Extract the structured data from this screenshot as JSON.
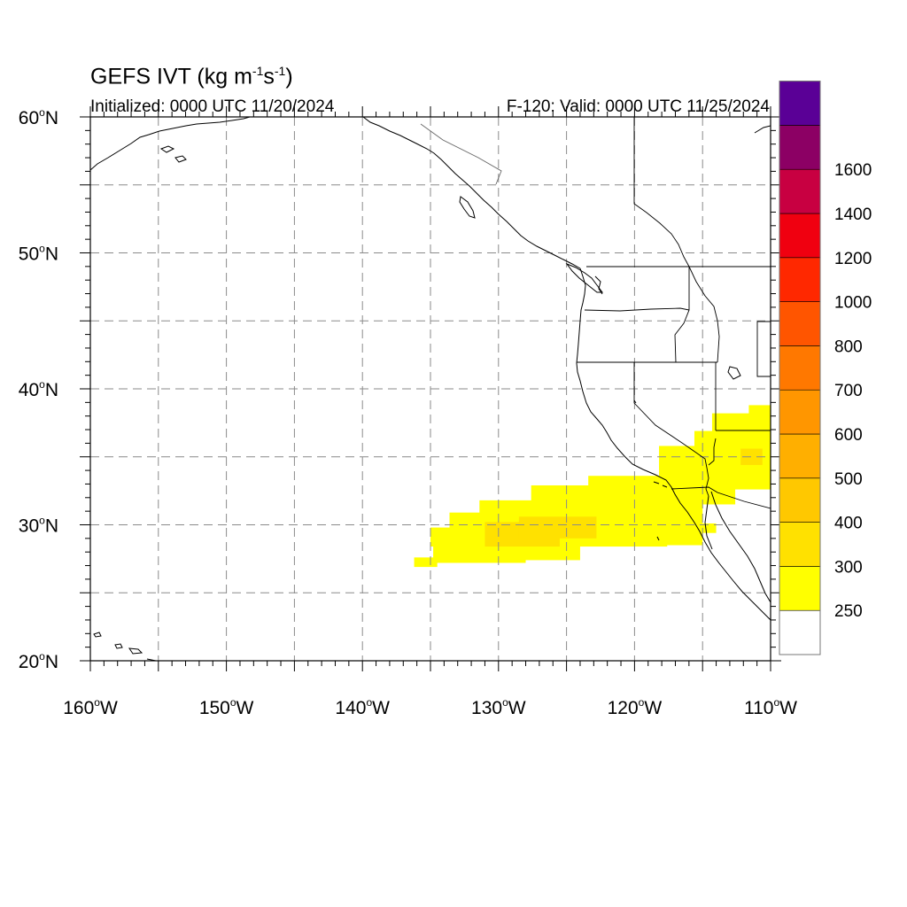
{
  "title": {
    "prefix": "GEFS IVT (kg m",
    "exp1": "-1",
    "mid": "s",
    "exp2": "-1",
    "suffix": ")"
  },
  "subtitle_left": "Initialized: 0000 UTC 11/20/2024",
  "subtitle_right": "F-120: Valid: 0000 UTC 11/25/2024",
  "map": {
    "lon_range": [
      -160,
      -110
    ],
    "lat_range": [
      20,
      60
    ],
    "lon_ticks": [
      {
        "value": -160,
        "label": "160",
        "suffix": "W"
      },
      {
        "value": -150,
        "label": "150",
        "suffix": "W"
      },
      {
        "value": -140,
        "label": "140",
        "suffix": "W"
      },
      {
        "value": -130,
        "label": "130",
        "suffix": "W"
      },
      {
        "value": -120,
        "label": "120",
        "suffix": "W"
      },
      {
        "value": -110,
        "label": "110",
        "suffix": "W"
      }
    ],
    "lat_ticks": [
      {
        "value": 60,
        "label": "60",
        "suffix": "N"
      },
      {
        "value": 50,
        "label": "50",
        "suffix": "N"
      },
      {
        "value": 40,
        "label": "40",
        "suffix": "N"
      },
      {
        "value": 30,
        "label": "30",
        "suffix": "N"
      },
      {
        "value": 20,
        "label": "20",
        "suffix": "N"
      }
    ],
    "grid_lons": [
      -155,
      -150,
      -145,
      -140,
      -135,
      -130,
      -125,
      -120,
      -115
    ],
    "grid_lats": [
      25,
      30,
      35,
      40,
      45,
      50,
      55
    ],
    "grid": true,
    "grid_color": "#8a8a8a",
    "coast_color": "#000000"
  },
  "colorbar": {
    "levels": [
      "250",
      "300",
      "400",
      "500",
      "600",
      "700",
      "800",
      "1000",
      "1200",
      "1400",
      "1600"
    ],
    "colors": [
      "#ffffff",
      "#ffff00",
      "#ffe100",
      "#ffc800",
      "#ffaf00",
      "#ff9600",
      "#ff7800",
      "#ff5500",
      "#ff2800",
      "#f00010",
      "#c80041",
      "#8c0064",
      "#5a0096"
    ]
  },
  "ivt_field": {
    "cells": [
      {
        "lon_min": -136.2,
        "lon_max": -134.5,
        "lat_min": 26.9,
        "lat_max": 27.6,
        "category": "250-300"
      },
      {
        "lon_min": -134.8,
        "lon_max": -128.0,
        "lat_min": 27.2,
        "lat_max": 28.6,
        "category": "250-300"
      },
      {
        "lon_min": -135.0,
        "lon_max": -131.0,
        "lat_min": 28.4,
        "lat_max": 29.8,
        "category": "250-300"
      },
      {
        "lon_min": -133.6,
        "lon_max": -124.0,
        "lat_min": 27.4,
        "lat_max": 30.9,
        "category": "250-300"
      },
      {
        "lon_min": -131.4,
        "lon_max": -121.5,
        "lat_min": 28.9,
        "lat_max": 31.8,
        "category": "250-300"
      },
      {
        "lon_min": -127.6,
        "lon_max": -117.6,
        "lat_min": 28.4,
        "lat_max": 32.9,
        "category": "250-300"
      },
      {
        "lon_min": -123.4,
        "lon_max": -115.0,
        "lat_min": 28.5,
        "lat_max": 33.6,
        "category": "250-300"
      },
      {
        "lon_min": -119.0,
        "lon_max": -114.0,
        "lat_min": 29.4,
        "lat_max": 30.1,
        "category": "250-300"
      },
      {
        "lon_min": -118.2,
        "lon_max": -112.6,
        "lat_min": 31.5,
        "lat_max": 35.8,
        "category": "250-300"
      },
      {
        "lon_min": -115.6,
        "lon_max": -112.0,
        "lat_min": 33.2,
        "lat_max": 36.9,
        "category": "250-300"
      },
      {
        "lon_min": -114.3,
        "lon_max": -110.0,
        "lat_min": 32.6,
        "lat_max": 38.2,
        "category": "250-300"
      },
      {
        "lon_min": -111.6,
        "lon_max": -110.0,
        "lat_min": 38.0,
        "lat_max": 38.8,
        "category": "250-300"
      },
      {
        "lon_min": -131.0,
        "lon_max": -125.5,
        "lat_min": 28.4,
        "lat_max": 30.2,
        "category": "300-400"
      },
      {
        "lon_min": -128.5,
        "lon_max": -122.8,
        "lat_min": 29.0,
        "lat_max": 30.6,
        "category": "300-400"
      },
      {
        "lon_min": -112.2,
        "lon_max": -110.6,
        "lat_min": 34.4,
        "lat_max": 35.6,
        "category": "300-400"
      }
    ]
  }
}
